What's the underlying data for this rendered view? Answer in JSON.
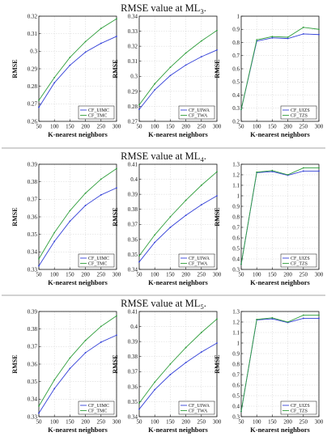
{
  "colors": {
    "series1": "#3340d8",
    "series2": "#2f9e3c",
    "frame": "#111111",
    "rule": "#888888"
  },
  "xlabel": "K-nearest neighbors",
  "ylabel": "RMSE",
  "panels": [
    {
      "title_main": "RMSE value at ML",
      "title_sub": "3",
      "title_end": ".",
      "charts": [
        {
          "type": "line",
          "x": [
            50,
            100,
            150,
            200,
            250,
            300
          ],
          "xticks": [
            "50",
            "100",
            "150",
            "200",
            "250",
            "300"
          ],
          "ylim": [
            0.26,
            0.32
          ],
          "yticks": [
            "0.26",
            "0.27",
            "0.28",
            "0.29",
            "0.3",
            "0.31",
            "0.32"
          ],
          "grid": true,
          "legend": "bottom-right",
          "series": [
            {
              "name": "CF_UIMC",
              "values": [
                0.268,
                0.282,
                0.292,
                0.2995,
                0.3045,
                0.3085
              ]
            },
            {
              "name": "CF_TMC",
              "values": [
                0.272,
                0.285,
                0.2965,
                0.3055,
                0.313,
                0.3185
              ]
            }
          ]
        },
        {
          "type": "line",
          "x": [
            50,
            100,
            150,
            200,
            250,
            300
          ],
          "xticks": [
            "50",
            "100",
            "150",
            "200",
            "250",
            "300"
          ],
          "ylim": [
            0.27,
            0.34
          ],
          "yticks": [
            "0.27",
            "0.28",
            "0.29",
            "0.3",
            "0.31",
            "0.32",
            "0.33",
            "0.34"
          ],
          "grid": true,
          "legend": "bottom-right",
          "series": [
            {
              "name": "CF_UIWA",
              "values": [
                0.278,
                0.291,
                0.3005,
                0.3075,
                0.313,
                0.3175
              ]
            },
            {
              "name": "CF_TWA",
              "values": [
                0.281,
                0.295,
                0.306,
                0.3155,
                0.3235,
                0.3305
              ]
            }
          ]
        },
        {
          "type": "line",
          "x": [
            50,
            100,
            150,
            200,
            250,
            300
          ],
          "xticks": [
            "50",
            "100",
            "150",
            "200",
            "250",
            "300"
          ],
          "ylim": [
            0.2,
            1.0
          ],
          "yticks": [
            "0.2",
            "0.3",
            "0.4",
            "0.5",
            "0.6",
            "0.7",
            "0.8",
            "0.9",
            "1"
          ],
          "grid": true,
          "legend": "bottom-right",
          "series": [
            {
              "name": "CF_UIZS",
              "values": [
                0.29,
                0.81,
                0.835,
                0.83,
                0.865,
                0.86
              ]
            },
            {
              "name": "CF_TZS",
              "values": [
                0.29,
                0.82,
                0.845,
                0.84,
                0.915,
                0.9
              ]
            }
          ]
        }
      ]
    },
    {
      "title_main": "RMSE value at ML",
      "title_sub": "4",
      "title_end": ".",
      "charts": [
        {
          "type": "line",
          "x": [
            50,
            100,
            150,
            200,
            250,
            300
          ],
          "xticks": [
            "50",
            "100",
            "150",
            "200",
            "250",
            "300"
          ],
          "ylim": [
            0.33,
            0.39
          ],
          "yticks": [
            "0.33",
            "0.34",
            "0.35",
            "0.36",
            "0.37",
            "0.38",
            "0.39"
          ],
          "grid": true,
          "legend": "bottom-right",
          "series": [
            {
              "name": "CF_UIMC",
              "values": [
                0.332,
                0.346,
                0.3575,
                0.3665,
                0.3725,
                0.3765
              ]
            },
            {
              "name": "CF_TMC",
              "values": [
                0.336,
                0.351,
                0.3635,
                0.3735,
                0.3815,
                0.3875
              ]
            }
          ]
        },
        {
          "type": "line",
          "x": [
            50,
            100,
            150,
            200,
            250,
            300
          ],
          "xticks": [
            "50",
            "100",
            "150",
            "200",
            "250",
            "300"
          ],
          "ylim": [
            0.34,
            0.41
          ],
          "yticks": [
            "0.34",
            "0.35",
            "0.36",
            "0.37",
            "0.38",
            "0.39",
            "0.4",
            "0.41"
          ],
          "grid": true,
          "legend": "bottom-right",
          "series": [
            {
              "name": "CF_UIWA",
              "values": [
                0.345,
                0.358,
                0.368,
                0.376,
                0.383,
                0.389
              ]
            },
            {
              "name": "CF_TWA",
              "values": [
                0.349,
                0.363,
                0.375,
                0.386,
                0.396,
                0.405
              ]
            }
          ]
        },
        {
          "type": "line",
          "x": [
            50,
            100,
            150,
            200,
            250,
            300
          ],
          "xticks": [
            "50",
            "100",
            "150",
            "200",
            "250",
            "300"
          ],
          "ylim": [
            0.3,
            1.3
          ],
          "yticks": [
            "0.3",
            "0.4",
            "0.5",
            "0.6",
            "0.7",
            "0.8",
            "0.9",
            "1",
            "1.1",
            "1.2",
            "1.3"
          ],
          "grid": true,
          "legend": "bottom-right",
          "series": [
            {
              "name": "CF_UIZS",
              "values": [
                0.35,
                1.22,
                1.23,
                1.195,
                1.235,
                1.235
              ]
            },
            {
              "name": "CF_TZS",
              "values": [
                0.35,
                1.225,
                1.24,
                1.2,
                1.265,
                1.265
              ]
            }
          ]
        }
      ]
    },
    {
      "title_main": "RMSE value at ML",
      "title_sub": "5",
      "title_end": ".",
      "charts": [
        {
          "type": "line",
          "x": [
            50,
            100,
            150,
            200,
            250,
            300
          ],
          "xticks": [
            "50",
            "100",
            "150",
            "200",
            "250",
            "300"
          ],
          "ylim": [
            0.33,
            0.39
          ],
          "yticks": [
            "0.33",
            "0.34",
            "0.35",
            "0.36",
            "0.37",
            "0.38",
            "0.39"
          ],
          "grid": true,
          "legend": "bottom-right",
          "series": [
            {
              "name": "CF_UIMC",
              "values": [
                0.332,
                0.346,
                0.3575,
                0.3665,
                0.3725,
                0.3765
              ]
            },
            {
              "name": "CF_TMC",
              "values": [
                0.336,
                0.351,
                0.3635,
                0.3735,
                0.3815,
                0.3875
              ]
            }
          ]
        },
        {
          "type": "line",
          "x": [
            50,
            100,
            150,
            200,
            250,
            300
          ],
          "xticks": [
            "50",
            "100",
            "150",
            "200",
            "250",
            "300"
          ],
          "ylim": [
            0.34,
            0.41
          ],
          "yticks": [
            "0.34",
            "0.35",
            "0.36",
            "0.37",
            "0.38",
            "0.39",
            "0.4",
            "0.41"
          ],
          "grid": true,
          "legend": "bottom-right",
          "series": [
            {
              "name": "CF_UIWA",
              "values": [
                0.345,
                0.358,
                0.368,
                0.376,
                0.383,
                0.389
              ]
            },
            {
              "name": "CF_TWA",
              "values": [
                0.349,
                0.363,
                0.375,
                0.386,
                0.396,
                0.405
              ]
            }
          ]
        },
        {
          "type": "line",
          "x": [
            50,
            100,
            150,
            200,
            250,
            300
          ],
          "xticks": [
            "50",
            "100",
            "150",
            "200",
            "250",
            "300"
          ],
          "ylim": [
            0.3,
            1.3
          ],
          "yticks": [
            "0.3",
            "0.4",
            "0.5",
            "0.6",
            "0.7",
            "0.8",
            "0.9",
            "1",
            "1.1",
            "1.2",
            "1.3"
          ],
          "grid": true,
          "legend": "bottom-right",
          "series": [
            {
              "name": "CF_UIZS",
              "values": [
                0.35,
                1.22,
                1.23,
                1.195,
                1.235,
                1.235
              ]
            },
            {
              "name": "CF_TZS",
              "values": [
                0.35,
                1.225,
                1.24,
                1.2,
                1.265,
                1.265
              ]
            }
          ]
        }
      ]
    }
  ]
}
